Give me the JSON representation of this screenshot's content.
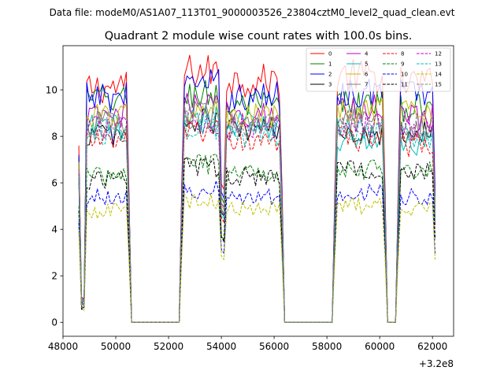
{
  "chart_data": {
    "type": "line",
    "suptitle": "Data file: modeM0/AS1A07_113T01_9000003526_23804cztM0_level2_quad_clean.evt",
    "title": "Quadrant 2 module wise count rates with 100.0s bins.",
    "xlabel": "",
    "ylabel": "",
    "x_offset_label": "+3.2e8",
    "xlim": [
      48000,
      62800
    ],
    "ylim": [
      -0.6,
      11.9
    ],
    "x_ticks": [
      48000,
      50000,
      52000,
      54000,
      56000,
      58000,
      60000,
      62000
    ],
    "x_tick_labels": [
      "48000",
      "50000",
      "52000",
      "54000",
      "56000",
      "58000",
      "60000",
      "62000"
    ],
    "y_ticks": [
      0,
      2,
      4,
      6,
      8,
      10
    ],
    "y_tick_labels": [
      "0",
      "2",
      "4",
      "6",
      "8",
      "10"
    ],
    "legend_position": "top-right",
    "bin_seconds": 100,
    "x_start": 48600,
    "x_end": 62100,
    "segments": [
      {
        "start": 48600,
        "end": 50500,
        "dropouts": [
          [
            48650,
            48850
          ]
        ]
      },
      {
        "start": 52500,
        "end": 54000,
        "dropouts": []
      },
      {
        "start": 54100,
        "end": 56300,
        "dropouts": []
      },
      {
        "start": 58300,
        "end": 60200,
        "dropouts": []
      },
      {
        "start": 60700,
        "end": 62100,
        "dropouts": []
      }
    ],
    "series": [
      {
        "name": "0",
        "color": "#ff0000",
        "dash": "solid",
        "levels": [
          10.1,
          10.8,
          10.4,
          10.6,
          10.3
        ],
        "start_value": 7.6
      },
      {
        "name": "1",
        "color": "#008000",
        "dash": "solid",
        "levels": [
          9.6,
          9.8,
          9.3,
          9.4,
          9.2
        ],
        "start_value": 7.1
      },
      {
        "name": "2",
        "color": "#0000ff",
        "dash": "solid",
        "levels": [
          9.7,
          10.2,
          9.7,
          9.9,
          9.9
        ],
        "start_value": 7.2
      },
      {
        "name": "3",
        "color": "#000000",
        "dash": "solid",
        "levels": [
          8.1,
          8.6,
          8.3,
          8.2,
          8.2
        ],
        "start_value": 6.2
      },
      {
        "name": "4",
        "color": "#bf00bf",
        "dash": "solid",
        "levels": [
          8.8,
          9.3,
          9.0,
          9.2,
          8.9
        ],
        "start_value": 6.8
      },
      {
        "name": "5",
        "color": "#00bfbf",
        "dash": "solid",
        "levels": [
          8.4,
          8.8,
          8.5,
          7.9,
          7.6
        ],
        "start_value": 6.5
      },
      {
        "name": "6",
        "color": "#bfbf00",
        "dash": "solid",
        "levels": [
          8.9,
          9.1,
          8.8,
          9.0,
          9.0
        ],
        "start_value": 6.9
      },
      {
        "name": "7",
        "color": "#808080",
        "dash": "solid",
        "levels": [
          8.6,
          8.9,
          8.4,
          8.6,
          8.4
        ],
        "start_value": 6.6
      },
      {
        "name": "8",
        "color": "#ff0000",
        "dash": "dashed",
        "levels": [
          7.8,
          8.2,
          7.8,
          7.9,
          7.6
        ],
        "start_value": 6.0
      },
      {
        "name": "9",
        "color": "#008000",
        "dash": "dashed",
        "levels": [
          6.3,
          6.8,
          6.4,
          6.6,
          6.5
        ],
        "start_value": 5.0
      },
      {
        "name": "10",
        "color": "#0000ff",
        "dash": "dashed",
        "levels": [
          5.4,
          5.7,
          5.4,
          5.6,
          5.4
        ],
        "start_value": 4.3
      },
      {
        "name": "11",
        "color": "#000000",
        "dash": "dashed",
        "levels": [
          6.1,
          6.7,
          6.3,
          6.6,
          6.5
        ],
        "start_value": 4.8
      },
      {
        "name": "12",
        "color": "#bf00bf",
        "dash": "dashed",
        "levels": [
          8.3,
          8.7,
          8.4,
          8.5,
          8.4
        ],
        "start_value": 6.4
      },
      {
        "name": "13",
        "color": "#00bfbf",
        "dash": "dashed",
        "levels": [
          8.0,
          8.4,
          8.1,
          8.2,
          8.0
        ],
        "start_value": 6.2
      },
      {
        "name": "14",
        "color": "#bfbf00",
        "dash": "dashed",
        "levels": [
          4.8,
          5.2,
          4.9,
          5.0,
          4.9
        ],
        "start_value": 3.9
      },
      {
        "name": "15",
        "color": "#808080",
        "dash": "dashed",
        "levels": [
          8.5,
          8.8,
          8.5,
          8.6,
          8.4
        ],
        "start_value": 6.5
      }
    ]
  }
}
